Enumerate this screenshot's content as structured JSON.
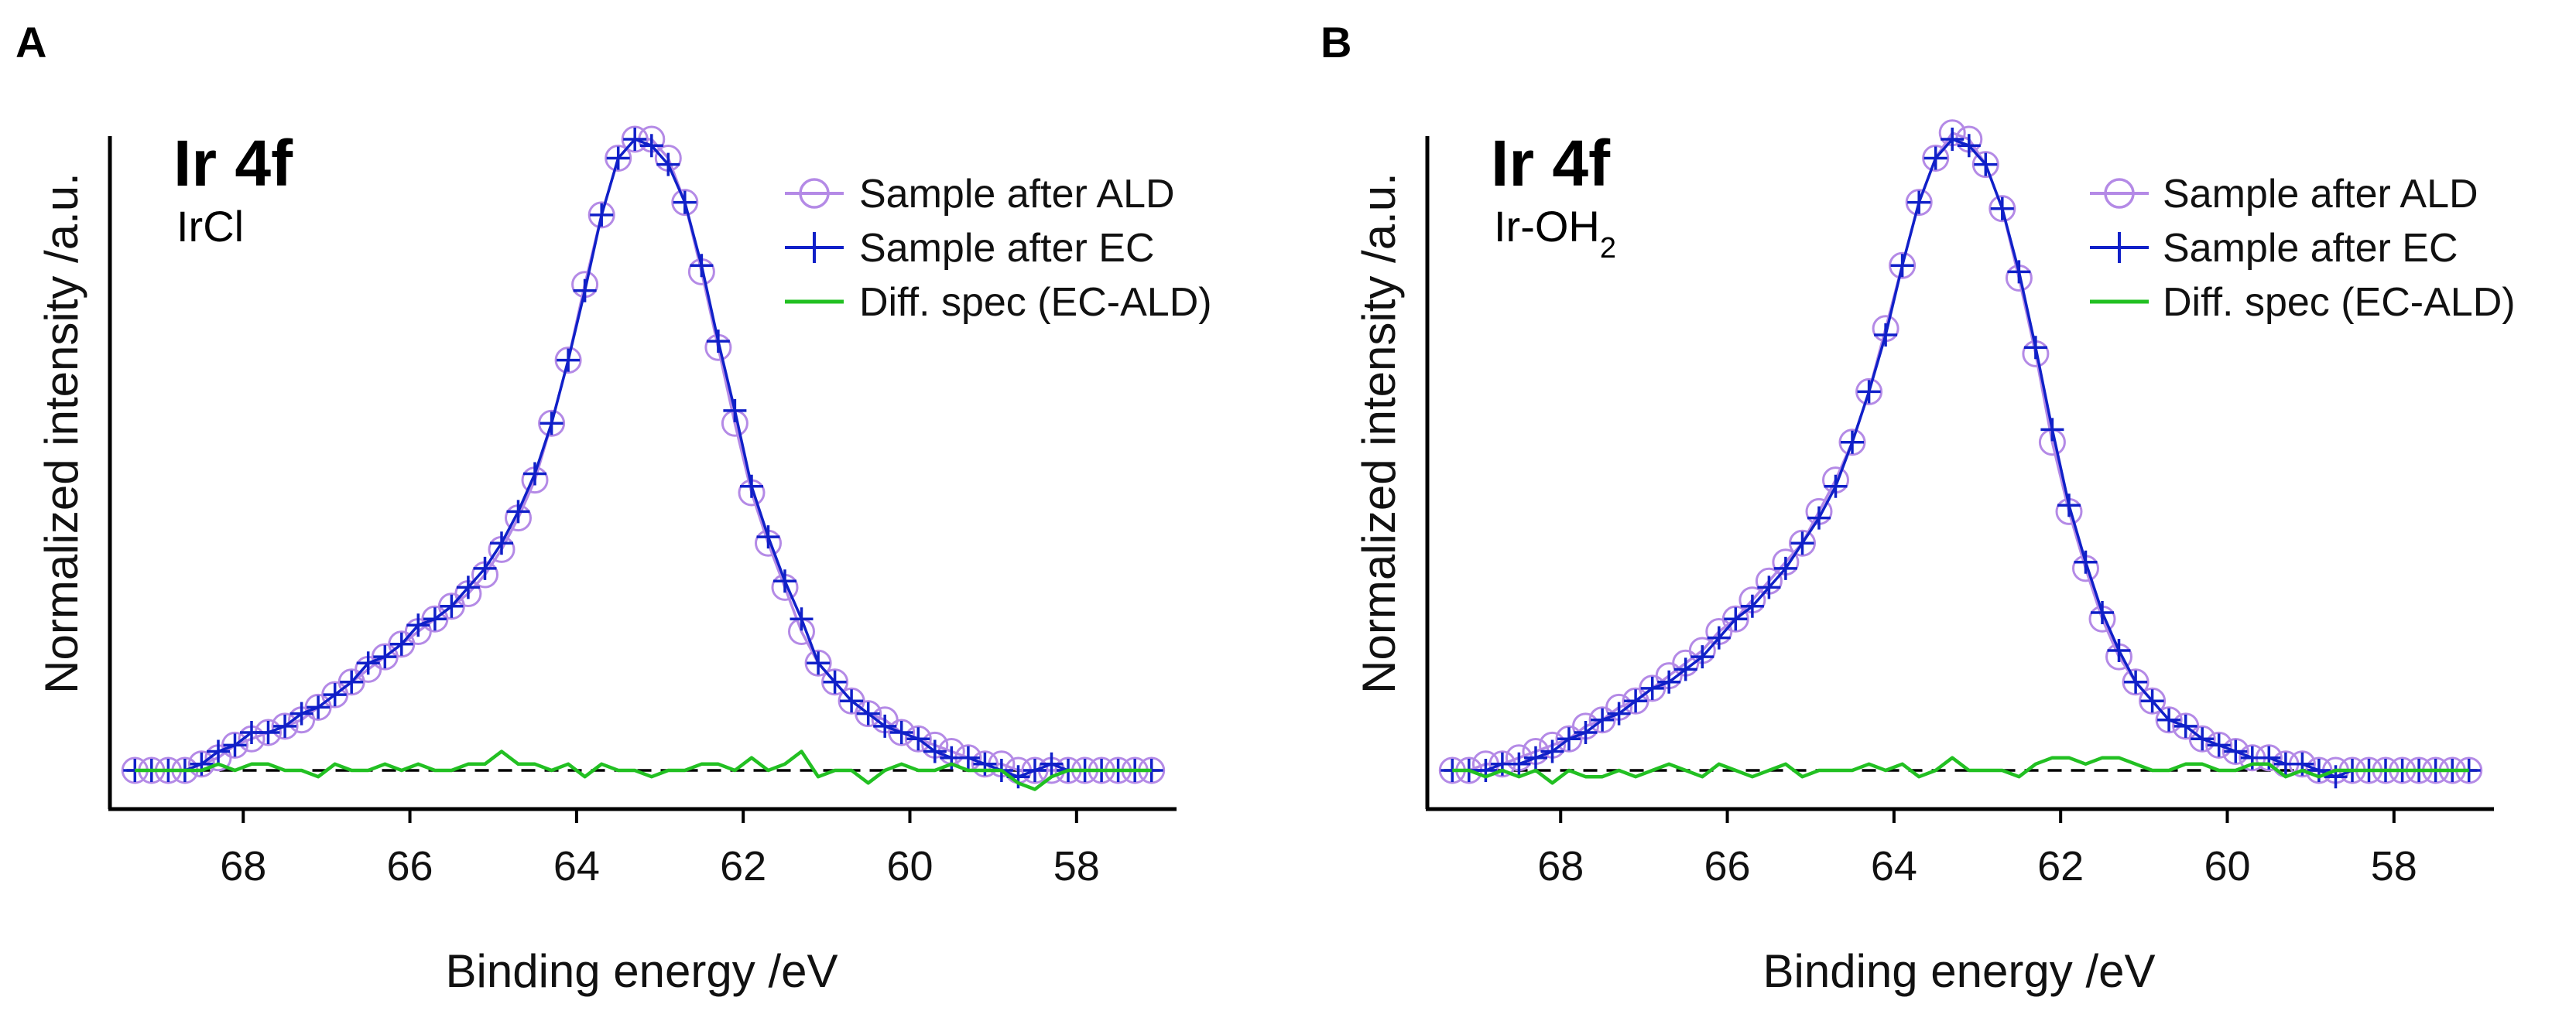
{
  "chart_data": [
    {
      "panel": "A",
      "type": "line",
      "title": "Ir 4f",
      "subtitle": "IrCl",
      "subtitle_sub": "",
      "xlabel": "Binding energy /eV",
      "ylabel": "Normalized intensity /a.u.",
      "xlim": [
        69.6,
        56.8
      ],
      "ylim": [
        -0.08,
        1.06
      ],
      "xticks": [
        "68",
        "66",
        "64",
        "62",
        "60",
        "58"
      ],
      "x_reversed": true,
      "baseline": 0,
      "peak_center": 63.1,
      "legend": [
        "Sample after ALD",
        "Sample after EC",
        "Diff. spec (EC-ALD)"
      ],
      "series": [
        {
          "name": "Sample after ALD",
          "marker": "circle",
          "color": "#b48ae6",
          "x": [
            69.3,
            69.1,
            68.9,
            68.7,
            68.5,
            68.3,
            68.1,
            67.9,
            67.7,
            67.5,
            67.3,
            67.1,
            66.9,
            66.7,
            66.5,
            66.3,
            66.1,
            65.9,
            65.7,
            65.5,
            65.3,
            65.1,
            64.9,
            64.7,
            64.5,
            64.3,
            64.1,
            63.9,
            63.7,
            63.5,
            63.3,
            63.1,
            62.9,
            62.7,
            62.5,
            62.3,
            62.1,
            61.9,
            61.7,
            61.5,
            61.3,
            61.1,
            60.9,
            60.7,
            60.5,
            60.3,
            60.1,
            59.9,
            59.7,
            59.5,
            59.3,
            59.1,
            58.9,
            58.7,
            58.5,
            58.3,
            58.1,
            57.9,
            57.7,
            57.5,
            57.3,
            57.1
          ],
          "y": [
            0.0,
            0.0,
            0.0,
            0.0,
            0.01,
            0.02,
            0.04,
            0.05,
            0.06,
            0.07,
            0.08,
            0.1,
            0.12,
            0.14,
            0.16,
            0.18,
            0.2,
            0.22,
            0.24,
            0.26,
            0.28,
            0.31,
            0.35,
            0.4,
            0.46,
            0.55,
            0.65,
            0.77,
            0.88,
            0.97,
            1.0,
            1.0,
            0.97,
            0.9,
            0.79,
            0.67,
            0.55,
            0.44,
            0.36,
            0.29,
            0.22,
            0.17,
            0.14,
            0.11,
            0.09,
            0.08,
            0.06,
            0.05,
            0.04,
            0.03,
            0.02,
            0.01,
            0.01,
            0.0,
            0.0,
            0.0,
            0.0,
            0.0,
            0.0,
            0.0,
            0.0,
            0.0
          ]
        },
        {
          "name": "Sample after EC",
          "marker": "plus",
          "color": "#1020c8",
          "x": [
            69.3,
            69.1,
            68.9,
            68.7,
            68.5,
            68.3,
            68.1,
            67.9,
            67.7,
            67.5,
            67.3,
            67.1,
            66.9,
            66.7,
            66.5,
            66.3,
            66.1,
            65.9,
            65.7,
            65.5,
            65.3,
            65.1,
            64.9,
            64.7,
            64.5,
            64.3,
            64.1,
            63.9,
            63.7,
            63.5,
            63.3,
            63.1,
            62.9,
            62.7,
            62.5,
            62.3,
            62.1,
            61.9,
            61.7,
            61.5,
            61.3,
            61.1,
            60.9,
            60.7,
            60.5,
            60.3,
            60.1,
            59.9,
            59.7,
            59.5,
            59.3,
            59.1,
            58.9,
            58.7,
            58.5,
            58.3,
            58.1,
            57.9,
            57.7,
            57.5,
            57.3,
            57.1
          ],
          "y": [
            0.0,
            0.0,
            0.0,
            0.0,
            0.01,
            0.03,
            0.04,
            0.06,
            0.06,
            0.07,
            0.09,
            0.1,
            0.12,
            0.14,
            0.17,
            0.18,
            0.2,
            0.23,
            0.24,
            0.26,
            0.29,
            0.32,
            0.36,
            0.41,
            0.47,
            0.55,
            0.65,
            0.76,
            0.88,
            0.97,
            1.0,
            0.99,
            0.96,
            0.9,
            0.8,
            0.68,
            0.57,
            0.45,
            0.37,
            0.3,
            0.24,
            0.17,
            0.14,
            0.11,
            0.09,
            0.07,
            0.06,
            0.05,
            0.03,
            0.02,
            0.02,
            0.01,
            0.0,
            -0.01,
            0.0,
            0.01,
            0.0,
            0.0,
            0.0,
            0.0,
            0.0,
            0.0
          ]
        },
        {
          "name": "Diff. spec (EC-ALD)",
          "marker": "line",
          "color": "#22c022",
          "x": [
            69.3,
            69.1,
            68.9,
            68.7,
            68.5,
            68.3,
            68.1,
            67.9,
            67.7,
            67.5,
            67.3,
            67.1,
            66.9,
            66.7,
            66.5,
            66.3,
            66.1,
            65.9,
            65.7,
            65.5,
            65.3,
            65.1,
            64.9,
            64.7,
            64.5,
            64.3,
            64.1,
            63.9,
            63.7,
            63.5,
            63.3,
            63.1,
            62.9,
            62.7,
            62.5,
            62.3,
            62.1,
            61.9,
            61.7,
            61.5,
            61.3,
            61.1,
            60.9,
            60.7,
            60.5,
            60.3,
            60.1,
            59.9,
            59.7,
            59.5,
            59.3,
            59.1,
            58.9,
            58.7,
            58.5,
            58.3,
            58.1,
            57.9,
            57.7,
            57.5,
            57.3,
            57.1
          ],
          "y": [
            0.0,
            0.0,
            0.0,
            0.0,
            0.0,
            0.01,
            0.0,
            0.01,
            0.01,
            0.0,
            0.0,
            -0.01,
            0.01,
            0.0,
            0.0,
            0.01,
            0.0,
            0.01,
            0.0,
            0.0,
            0.01,
            0.01,
            0.03,
            0.01,
            0.01,
            0.0,
            0.01,
            -0.01,
            0.01,
            0.0,
            0.0,
            -0.01,
            0.0,
            0.0,
            0.01,
            0.01,
            0.0,
            0.02,
            0.0,
            0.01,
            0.03,
            -0.01,
            0.0,
            0.0,
            -0.02,
            0.0,
            0.01,
            0.0,
            0.0,
            0.01,
            0.0,
            0.0,
            0.0,
            -0.02,
            -0.03,
            -0.01,
            0.0,
            0.0,
            0.0,
            0.0,
            0.0,
            0.0
          ]
        }
      ]
    },
    {
      "panel": "B",
      "type": "line",
      "title": "Ir 4f",
      "subtitle": "Ir-OH",
      "subtitle_sub": "2",
      "xlabel": "Binding energy /eV",
      "ylabel": "Normalized intensity /a.u.",
      "xlim": [
        69.6,
        56.8
      ],
      "ylim": [
        -0.08,
        1.06
      ],
      "xticks": [
        "68",
        "66",
        "64",
        "62",
        "60",
        "58"
      ],
      "x_reversed": true,
      "baseline": 0,
      "peak_center": 63.1,
      "legend": [
        "Sample after ALD",
        "Sample after EC",
        "Diff. spec (EC-ALD)"
      ],
      "series": [
        {
          "name": "Sample after ALD",
          "marker": "circle",
          "color": "#b48ae6",
          "x": [
            69.3,
            69.1,
            68.9,
            68.7,
            68.5,
            68.3,
            68.1,
            67.9,
            67.7,
            67.5,
            67.3,
            67.1,
            66.9,
            66.7,
            66.5,
            66.3,
            66.1,
            65.9,
            65.7,
            65.5,
            65.3,
            65.1,
            64.9,
            64.7,
            64.5,
            64.3,
            64.1,
            63.9,
            63.7,
            63.5,
            63.3,
            63.1,
            62.9,
            62.7,
            62.5,
            62.3,
            62.1,
            61.9,
            61.7,
            61.5,
            61.3,
            61.1,
            60.9,
            60.7,
            60.5,
            60.3,
            60.1,
            59.9,
            59.7,
            59.5,
            59.3,
            59.1,
            58.9,
            58.7,
            58.5,
            58.3,
            58.1,
            57.9,
            57.7,
            57.5,
            57.3,
            57.1
          ],
          "y": [
            0.0,
            0.0,
            0.01,
            0.01,
            0.02,
            0.03,
            0.04,
            0.05,
            0.07,
            0.08,
            0.1,
            0.11,
            0.13,
            0.15,
            0.17,
            0.19,
            0.22,
            0.24,
            0.27,
            0.3,
            0.33,
            0.36,
            0.41,
            0.46,
            0.52,
            0.6,
            0.7,
            0.8,
            0.9,
            0.97,
            1.01,
            1.0,
            0.96,
            0.89,
            0.78,
            0.66,
            0.52,
            0.41,
            0.32,
            0.24,
            0.18,
            0.14,
            0.11,
            0.08,
            0.07,
            0.05,
            0.04,
            0.03,
            0.02,
            0.02,
            0.01,
            0.01,
            0.0,
            0.0,
            0.0,
            0.0,
            0.0,
            0.0,
            0.0,
            0.0,
            0.0,
            0.0
          ]
        },
        {
          "name": "Sample after EC",
          "marker": "plus",
          "color": "#1020c8",
          "x": [
            69.3,
            69.1,
            68.9,
            68.7,
            68.5,
            68.3,
            68.1,
            67.9,
            67.7,
            67.5,
            67.3,
            67.1,
            66.9,
            66.7,
            66.5,
            66.3,
            66.1,
            65.9,
            65.7,
            65.5,
            65.3,
            65.1,
            64.9,
            64.7,
            64.5,
            64.3,
            64.1,
            63.9,
            63.7,
            63.5,
            63.3,
            63.1,
            62.9,
            62.7,
            62.5,
            62.3,
            62.1,
            61.9,
            61.7,
            61.5,
            61.3,
            61.1,
            60.9,
            60.7,
            60.5,
            60.3,
            60.1,
            59.9,
            59.7,
            59.5,
            59.3,
            59.1,
            58.9,
            58.7,
            58.5,
            58.3,
            58.1,
            57.9,
            57.7,
            57.5,
            57.3,
            57.1
          ],
          "y": [
            0.0,
            0.0,
            0.0,
            0.01,
            0.01,
            0.02,
            0.03,
            0.05,
            0.06,
            0.08,
            0.09,
            0.11,
            0.13,
            0.14,
            0.16,
            0.18,
            0.21,
            0.24,
            0.26,
            0.29,
            0.32,
            0.36,
            0.4,
            0.45,
            0.52,
            0.6,
            0.69,
            0.8,
            0.9,
            0.97,
            1.0,
            0.99,
            0.96,
            0.89,
            0.79,
            0.67,
            0.54,
            0.42,
            0.33,
            0.25,
            0.19,
            0.14,
            0.11,
            0.08,
            0.07,
            0.05,
            0.04,
            0.03,
            0.02,
            0.02,
            0.01,
            0.01,
            0.0,
            -0.01,
            0.0,
            0.0,
            0.0,
            0.0,
            0.0,
            0.0,
            0.0,
            0.0
          ]
        },
        {
          "name": "Diff. spec (EC-ALD)",
          "marker": "line",
          "color": "#22c022",
          "x": [
            69.3,
            69.1,
            68.9,
            68.7,
            68.5,
            68.3,
            68.1,
            67.9,
            67.7,
            67.5,
            67.3,
            67.1,
            66.9,
            66.7,
            66.5,
            66.3,
            66.1,
            65.9,
            65.7,
            65.5,
            65.3,
            65.1,
            64.9,
            64.7,
            64.5,
            64.3,
            64.1,
            63.9,
            63.7,
            63.5,
            63.3,
            63.1,
            62.9,
            62.7,
            62.5,
            62.3,
            62.1,
            61.9,
            61.7,
            61.5,
            61.3,
            61.1,
            60.9,
            60.7,
            60.5,
            60.3,
            60.1,
            59.9,
            59.7,
            59.5,
            59.3,
            59.1,
            58.9,
            58.7,
            58.5,
            58.3,
            58.1,
            57.9,
            57.7,
            57.5,
            57.3,
            57.1
          ],
          "y": [
            0.0,
            0.0,
            -0.01,
            0.0,
            -0.01,
            0.0,
            -0.02,
            0.0,
            -0.01,
            -0.01,
            0.0,
            -0.01,
            0.0,
            0.01,
            0.0,
            -0.01,
            0.01,
            0.0,
            -0.01,
            0.0,
            0.01,
            -0.01,
            0.0,
            0.0,
            0.0,
            0.01,
            0.0,
            0.01,
            -0.01,
            0.0,
            0.02,
            0.0,
            0.0,
            0.0,
            -0.01,
            0.01,
            0.02,
            0.02,
            0.01,
            0.02,
            0.02,
            0.01,
            0.0,
            0.0,
            0.01,
            0.01,
            0.0,
            0.0,
            0.01,
            0.01,
            -0.01,
            0.0,
            -0.01,
            0.0,
            0.0,
            0.0,
            0.0,
            0.0,
            0.0,
            0.0,
            0.0,
            0.0
          ]
        }
      ]
    }
  ]
}
